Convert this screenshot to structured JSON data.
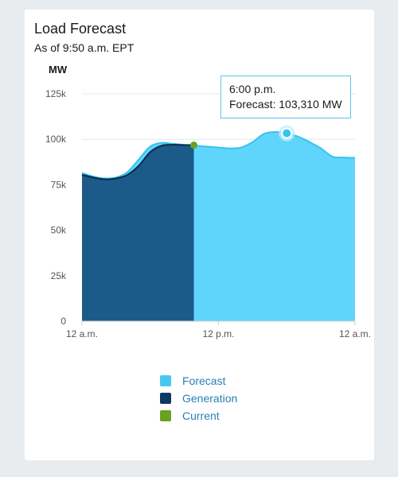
{
  "card": {
    "title": "Load Forecast",
    "subtitle": "As of 9:50 a.m. EPT"
  },
  "tooltip": {
    "time": "6:00 p.m.",
    "text": "Forecast: 103,310 MW"
  },
  "colors": {
    "forecast": "#5fd5fc",
    "generation": "#1c5a8a",
    "generation_line": "#0b2a4a",
    "current": "#6aa121",
    "legend_forecast": "#47c8f2",
    "legend_generation": "#0c3a64"
  },
  "legend": [
    {
      "label": "Forecast",
      "color": "#47c8f2",
      "shape": "square"
    },
    {
      "label": "Generation",
      "color": "#0c3a64",
      "shape": "square"
    },
    {
      "label": "Current",
      "color": "#6aa121",
      "shape": "square"
    }
  ],
  "chart_data": {
    "type": "area",
    "ylabel": "MW",
    "ylim": [
      0,
      125000
    ],
    "yticks": [
      0,
      25000,
      50000,
      75000,
      100000,
      125000
    ],
    "ytick_labels": [
      "0",
      "25k",
      "50k",
      "75k",
      "100k",
      "125k"
    ],
    "xlim": [
      0,
      24
    ],
    "xticks": [
      0,
      12,
      24
    ],
    "xtick_labels": [
      "12 a.m.",
      "12 p.m.",
      "12 a.m."
    ],
    "grid": true,
    "legend_position": "bottom",
    "series": [
      {
        "name": "Forecast",
        "x": [
          0,
          1,
          2,
          3,
          4,
          5,
          6,
          7,
          8,
          9,
          9.83,
          10,
          11,
          12,
          13,
          14,
          15,
          16,
          17,
          18,
          19,
          20,
          21,
          22,
          23,
          24
        ],
        "y": [
          81500,
          79500,
          78500,
          79000,
          82000,
          89000,
          96000,
          98000,
          97500,
          97000,
          96800,
          96500,
          96000,
          95500,
          95000,
          95500,
          98500,
          103000,
          104000,
          103310,
          101500,
          98500,
          95000,
          90500,
          90000,
          89800
        ]
      },
      {
        "name": "Generation",
        "x": [
          0,
          1,
          2,
          3,
          4,
          5,
          6,
          7,
          8,
          9,
          9.83
        ],
        "y": [
          80500,
          79000,
          78000,
          78500,
          80500,
          85500,
          93000,
          96500,
          97000,
          96800,
          96800
        ]
      }
    ],
    "current": {
      "x": 9.83,
      "y": 96800
    },
    "highlight": {
      "x": 18,
      "y": 103310
    }
  }
}
